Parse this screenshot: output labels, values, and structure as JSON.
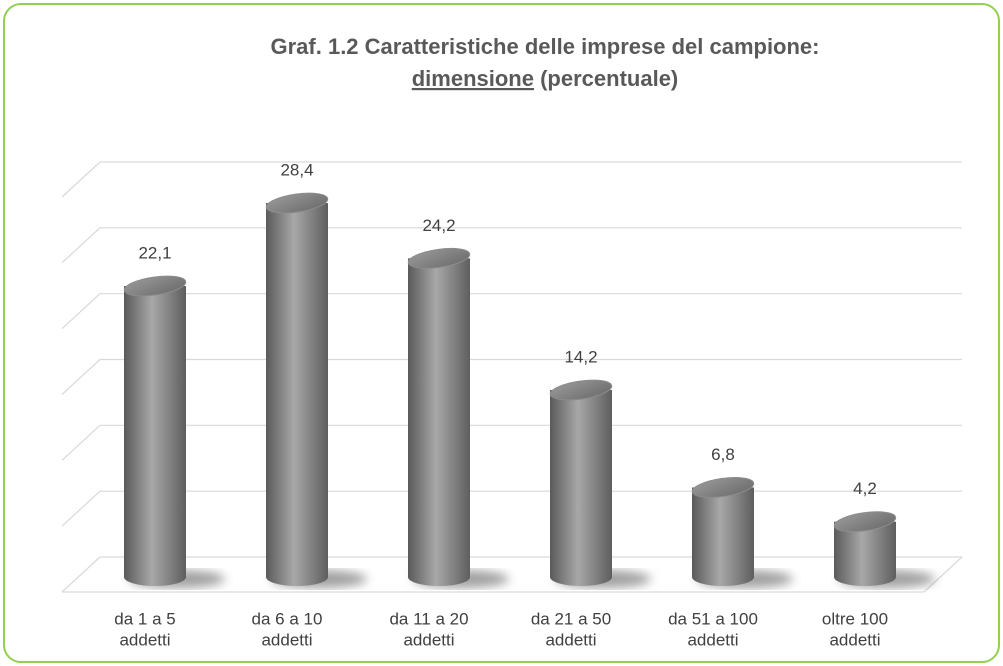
{
  "chart_data": {
    "type": "bar",
    "title": [
      "Graf. 1.2 Caratteristiche delle imprese del campione:",
      "dimensione",
      "(percentuale)"
    ],
    "categories": [
      [
        "da 1 a 5",
        "addetti"
      ],
      [
        "da 6 a 10",
        "addetti"
      ],
      [
        "da 11 a 20",
        "addetti"
      ],
      [
        "da 21 a 50",
        "addetti"
      ],
      [
        "da 51 a 100",
        "addetti"
      ],
      [
        "oltre 100",
        "addetti"
      ]
    ],
    "values": [
      22.1,
      28.4,
      24.2,
      14.2,
      6.8,
      4.2
    ],
    "value_labels": [
      "22,1",
      "28,4",
      "24,2",
      "14,2",
      "6,8",
      "4,2"
    ],
    "color": "#8c8c8c",
    "ylim": [
      0,
      30
    ],
    "yticks": [
      0,
      5,
      10,
      15,
      20,
      25,
      30
    ],
    "grid": true
  }
}
